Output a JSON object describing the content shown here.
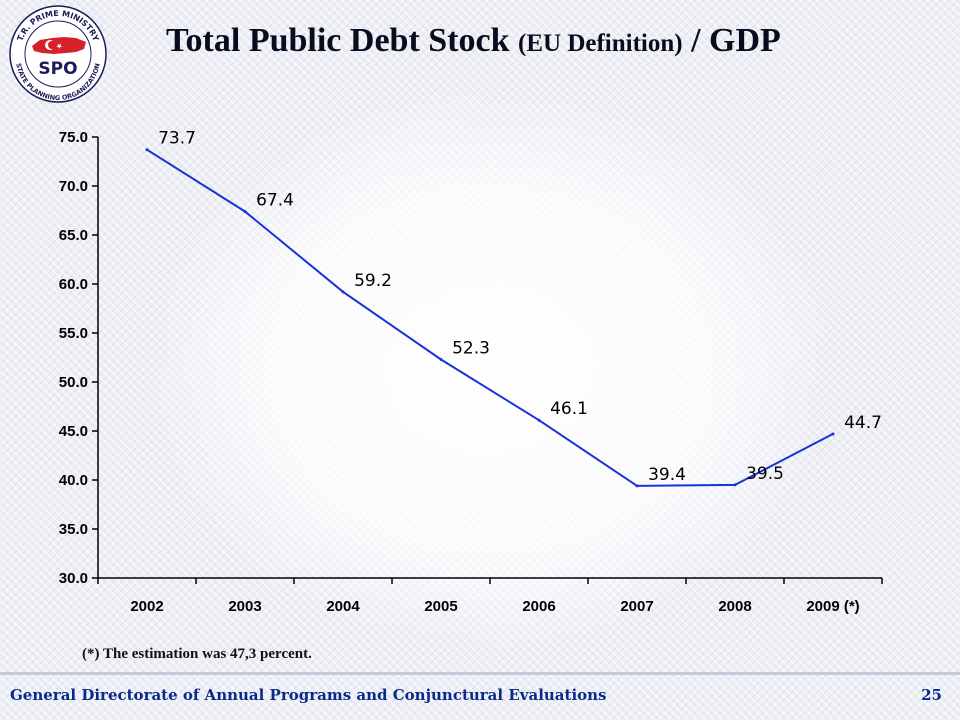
{
  "slide": {
    "logo": {
      "ring_top": "T.R. PRIME MINISTRY",
      "ring_bottom": "STATE PLANNING ORGANIZATION",
      "abbr": "SPO",
      "colors": {
        "red": "#d6202a",
        "navy": "#1c1c5a"
      }
    },
    "title": {
      "main": "Total Public Debt Stock ",
      "paren": "(EU Definition)",
      "tail": " / GDP"
    },
    "footnote": "(*) The estimation was 47,3 percent.",
    "footer": {
      "text": "General Directorate of Annual Programs and Conjunctural Evaluations",
      "page": "25"
    },
    "colors": {
      "line": "#1a30d8",
      "footer_text": "#0a2a8a"
    }
  },
  "chart_data": {
    "type": "line",
    "categories": [
      "2002",
      "2003",
      "2004",
      "2005",
      "2006",
      "2007",
      "2008",
      "2009 (*)"
    ],
    "series": [
      {
        "values": [
          73.7,
          67.4,
          59.2,
          52.3,
          46.1,
          39.4,
          39.5,
          44.7
        ]
      }
    ],
    "data_labels": [
      "73.7",
      "67.4",
      "59.2",
      "52.3",
      "46.1",
      "39.4",
      "39.5",
      "44.7"
    ],
    "ylim": [
      30,
      75
    ],
    "y_ticks": [
      "30.0",
      "35.0",
      "40.0",
      "45.0",
      "50.0",
      "55.0",
      "60.0",
      "65.0",
      "70.0",
      "75.0"
    ],
    "grid": false
  }
}
